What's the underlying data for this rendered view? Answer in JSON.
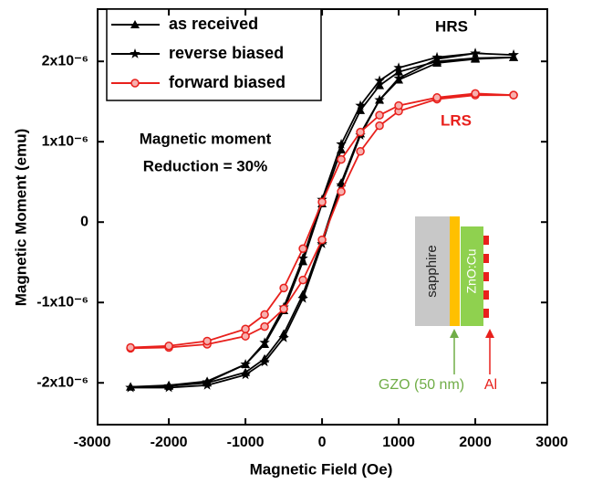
{
  "chart_data": {
    "type": "line",
    "xlabel": "Magnetic Field (Oe)",
    "ylabel": "Magnetic Moment (emu)",
    "xlim": [
      -2930,
      2940
    ],
    "xticks": [
      -3000,
      -2000,
      -1000,
      0,
      1000,
      2000,
      3000
    ],
    "ylim": [
      -2.52e-06,
      2.65e-06
    ],
    "yticks": [
      {
        "value": -2e-06,
        "label": "-2x10⁻⁶"
      },
      {
        "value": -1e-06,
        "label": "-1x10⁻⁶"
      },
      0,
      {
        "value": 1e-06,
        "label": "1x10⁻⁶"
      },
      {
        "value": 2e-06,
        "label": "2x10⁻⁶"
      }
    ],
    "legend": "upper left",
    "series": [
      {
        "name": "as received",
        "color": "#000000",
        "marker": "triangle",
        "x": [
          -2500,
          -2000,
          -1500,
          -1000,
          -750,
          -500,
          -250,
          0,
          250,
          500,
          750,
          1000,
          1500,
          2000,
          2500,
          2500,
          2000,
          1500,
          1000,
          750,
          500,
          250,
          0,
          -250,
          -500,
          -750,
          -1000,
          -1500,
          -2000,
          -2500
        ],
        "values": [
          -2.05e-06,
          -2.04e-06,
          -2e-06,
          -1.87e-06,
          -1.7e-06,
          -1.39e-06,
          -9e-07,
          -2.3e-07,
          4.9e-07,
          1.1e-06,
          1.52e-06,
          1.77e-06,
          1.98e-06,
          2.03e-06,
          2.05e-06,
          2.05e-06,
          2.04e-06,
          2e-06,
          1.87e-06,
          1.7e-06,
          1.39e-06,
          9e-07,
          2.3e-07,
          -4.9e-07,
          -1.1e-06,
          -1.52e-06,
          -1.77e-06,
          -1.98e-06,
          -2.03e-06,
          -2.05e-06
        ]
      },
      {
        "name": "reverse biased",
        "color": "#000000",
        "marker": "star",
        "x": [
          -2500,
          -2000,
          -1500,
          -1000,
          -750,
          -500,
          -250,
          0,
          250,
          500,
          750,
          1000,
          1500,
          2000,
          2500,
          2500,
          2000,
          1500,
          1000,
          750,
          500,
          250,
          0,
          -250,
          -500,
          -750,
          -1000,
          -1500,
          -2000,
          -2500
        ],
        "values": [
          -2.06e-06,
          -2.06e-06,
          -2.03e-06,
          -1.9e-06,
          -1.74e-06,
          -1.44e-06,
          -9.5e-07,
          -2.7e-07,
          4.6e-07,
          1.08e-06,
          1.52e-06,
          1.79e-06,
          2.03e-06,
          2.1e-06,
          2.08e-06,
          2.08e-06,
          2.1e-06,
          2.05e-06,
          1.92e-06,
          1.76e-06,
          1.45e-06,
          9.7e-07,
          2.8e-07,
          -4.5e-07,
          -1.06e-06,
          -1.5e-06,
          -1.77e-06,
          -1.99e-06,
          -2.04e-06,
          -2.06e-06
        ]
      },
      {
        "name": "forward biased",
        "color": "#e8201c",
        "marker": "circle",
        "x": [
          -2500,
          -2000,
          -1500,
          -1000,
          -750,
          -500,
          -250,
          0,
          250,
          500,
          750,
          1000,
          1500,
          2000,
          2500,
          2500,
          2000,
          1500,
          1000,
          750,
          500,
          250,
          0,
          -250,
          -500,
          -750,
          -1000,
          -1500,
          -2000,
          -2500
        ],
        "values": [
          -1.57e-06,
          -1.56e-06,
          -1.52e-06,
          -1.42e-06,
          -1.3e-06,
          -1.08e-06,
          -7.2e-07,
          -2.2e-07,
          3.8e-07,
          8.8e-07,
          1.2e-06,
          1.38e-06,
          1.53e-06,
          1.58e-06,
          1.58e-06,
          1.58e-06,
          1.6e-06,
          1.55e-06,
          1.45e-06,
          1.33e-06,
          1.12e-06,
          7.8e-07,
          2.5e-07,
          -3.3e-07,
          -8.2e-07,
          -1.15e-06,
          -1.33e-06,
          -1.48e-06,
          -1.54e-06,
          -1.56e-06
        ]
      }
    ],
    "annotations": [
      "HRS",
      "LRS",
      "Magnetic moment",
      "Reduction = 30%"
    ],
    "inset": {
      "layers": [
        "sapphire",
        "ZnO:Cu"
      ],
      "labels": [
        "GZO (50 nm)",
        "Al"
      ]
    }
  }
}
